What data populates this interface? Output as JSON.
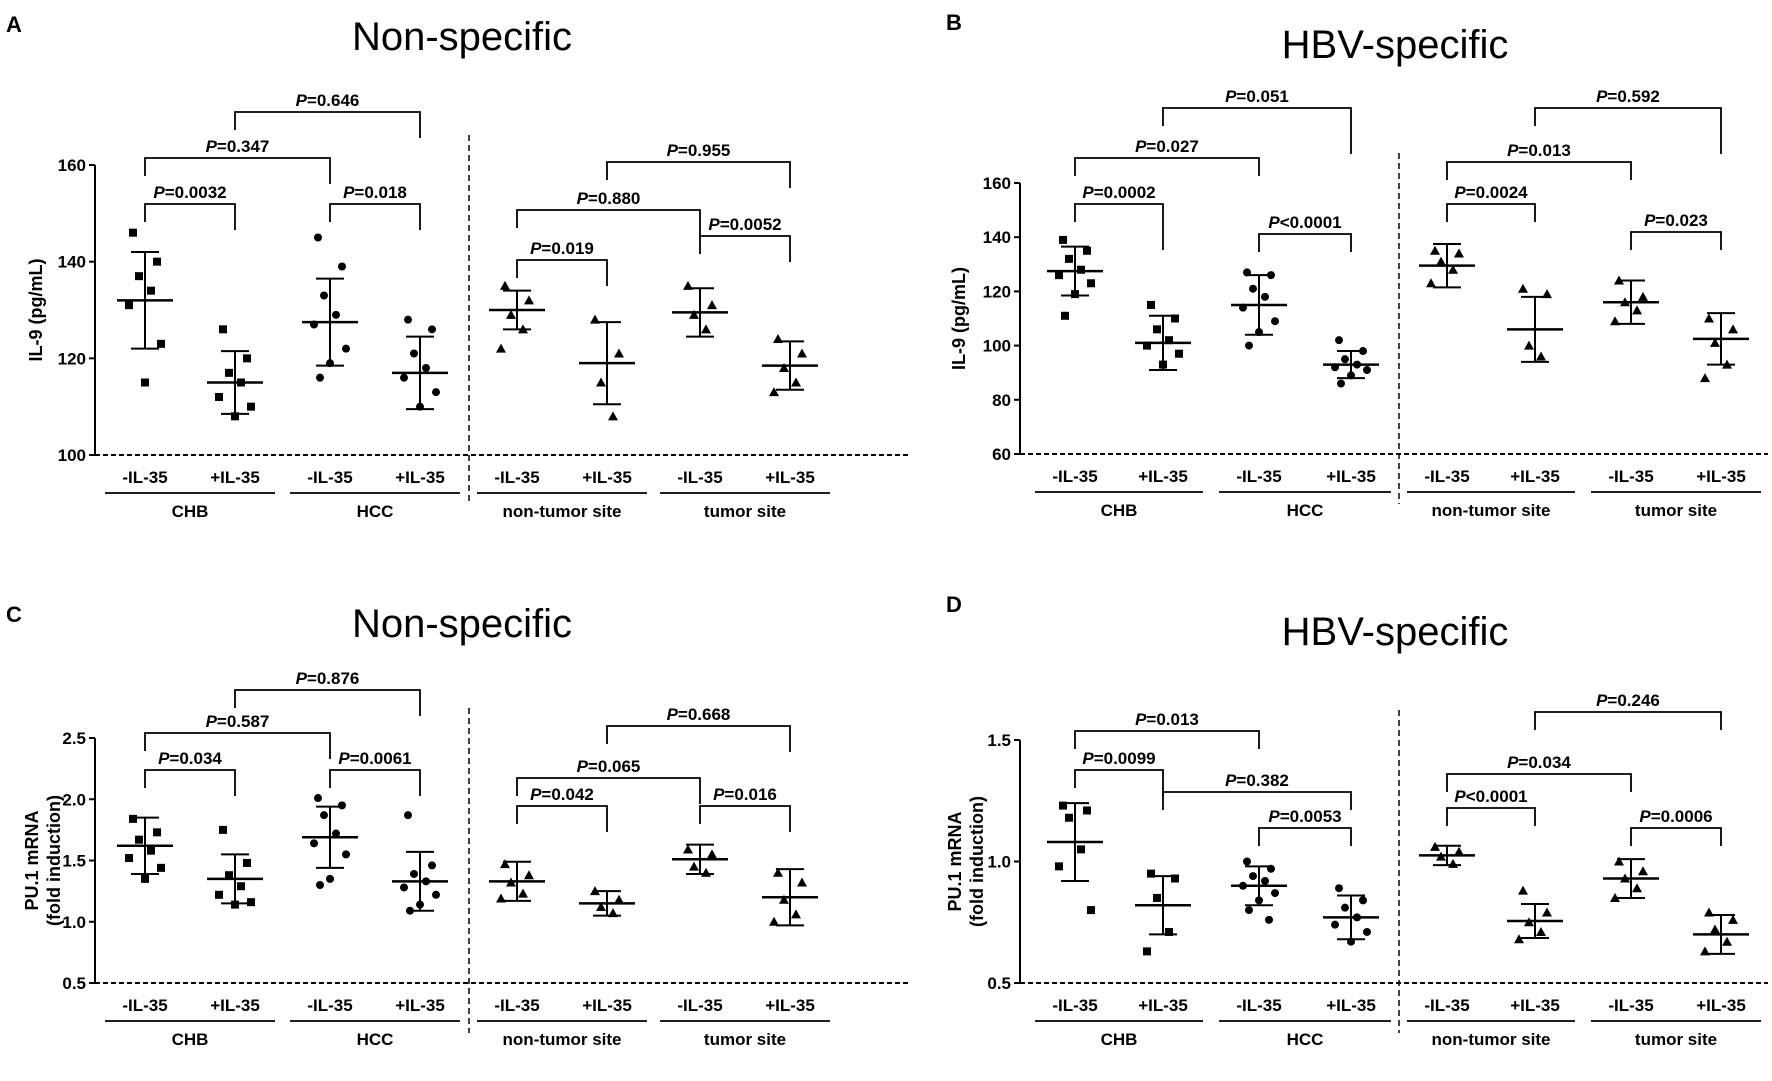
{
  "chart_data": [
    {
      "letter": "A",
      "type": "scatter",
      "title": "Non-specific",
      "ylabel": [
        "IL-9 (pg/mL)"
      ],
      "ylim": [
        100,
        160
      ],
      "yticks": [
        "100",
        "120",
        "140",
        "160"
      ],
      "categories": [
        "-IL-35",
        "+IL-35",
        "-IL-35",
        "+IL-35",
        "-IL-35",
        "+IL-35",
        "-IL-35",
        "+IL-35"
      ],
      "groups": [
        "CHB",
        "HCC",
        "non-tumor site",
        "tumor site"
      ],
      "marker_shapes": [
        "square",
        "square",
        "circle",
        "circle",
        "triangle",
        "triangle",
        "triangle",
        "triangle"
      ],
      "means": [
        132,
        115,
        127.5,
        117,
        130,
        119,
        129.5,
        118.5
      ],
      "sd": [
        10,
        6.5,
        9,
        7.5,
        4,
        8.5,
        5,
        5
      ],
      "points": [
        [
          146,
          140,
          137,
          134,
          131,
          123,
          115
        ],
        [
          126,
          120,
          117,
          115,
          112,
          110,
          108
        ],
        [
          145,
          139,
          133,
          129,
          127,
          122,
          119,
          116
        ],
        [
          128,
          126,
          121,
          118,
          116,
          113,
          110
        ],
        [
          135,
          132,
          129,
          126,
          122
        ],
        [
          128,
          121,
          115,
          108
        ],
        [
          135,
          131,
          129,
          126
        ],
        [
          124,
          121,
          118,
          115,
          113
        ]
      ],
      "comparisons": [
        {
          "from": 0,
          "to": 1,
          "label": "P=0.0032"
        },
        {
          "from": 2,
          "to": 3,
          "label": "P=0.018"
        },
        {
          "from": 0,
          "to": 2,
          "label": "P=0.347"
        },
        {
          "from": 1,
          "to": 3,
          "label": "P=0.646"
        },
        {
          "from": 4,
          "to": 5,
          "label": "P=0.019"
        },
        {
          "from": 6,
          "to": 7,
          "label": "P=0.0052"
        },
        {
          "from": 4,
          "to": 6,
          "label": "P=0.880"
        },
        {
          "from": 5,
          "to": 7,
          "label": "P=0.955"
        }
      ]
    },
    {
      "letter": "B",
      "type": "scatter",
      "title": "HBV-specific",
      "ylabel": [
        "IL-9 (pg/mL)"
      ],
      "ylim": [
        60,
        160
      ],
      "yticks": [
        "60",
        "80",
        "100",
        "120",
        "140",
        "160"
      ],
      "categories": [
        "-IL-35",
        "+IL-35",
        "-IL-35",
        "+IL-35",
        "-IL-35",
        "+IL-35",
        "-IL-35",
        "+IL-35"
      ],
      "groups": [
        "CHB",
        "HCC",
        "non-tumor site",
        "tumor site"
      ],
      "marker_shapes": [
        "square",
        "square",
        "circle",
        "circle",
        "triangle",
        "triangle",
        "triangle",
        "triangle"
      ],
      "means": [
        127.5,
        101,
        115,
        93,
        129.5,
        106,
        116,
        102.5
      ],
      "sd": [
        9,
        10,
        11,
        5,
        8,
        12,
        8,
        9.5
      ],
      "points": [
        [
          139,
          135,
          132,
          128,
          126,
          123,
          119,
          111
        ],
        [
          115,
          110,
          106,
          102,
          100,
          97,
          93
        ],
        [
          127,
          126,
          121,
          118,
          114,
          109,
          105,
          100
        ],
        [
          102,
          98,
          95,
          93,
          92,
          91,
          89,
          86
        ],
        [
          135,
          134,
          131,
          128,
          123
        ],
        [
          121,
          119,
          100,
          96
        ],
        [
          124,
          118,
          116,
          113,
          109
        ],
        [
          110,
          106,
          101,
          93,
          88
        ]
      ],
      "comparisons": [
        {
          "from": 0,
          "to": 1,
          "label": "P=0.0002"
        },
        {
          "from": 2,
          "to": 3,
          "label": "P<0.0001"
        },
        {
          "from": 0,
          "to": 2,
          "label": "P=0.027"
        },
        {
          "from": 1,
          "to": 3,
          "label": "P=0.051"
        },
        {
          "from": 4,
          "to": 5,
          "label": "P=0.0024"
        },
        {
          "from": 6,
          "to": 7,
          "label": "P=0.023"
        },
        {
          "from": 4,
          "to": 6,
          "label": "P=0.013"
        },
        {
          "from": 5,
          "to": 7,
          "label": "P=0.592"
        }
      ]
    },
    {
      "letter": "C",
      "type": "scatter",
      "title": "Non-specific",
      "ylabel": [
        "PU.1 mRNA",
        "(fold induction)"
      ],
      "ylim": [
        0.5,
        2.5
      ],
      "yticks": [
        "0.5",
        "1.0",
        "1.5",
        "2.0",
        "2.5"
      ],
      "categories": [
        "-IL-35",
        "+IL-35",
        "-IL-35",
        "+IL-35",
        "-IL-35",
        "+IL-35",
        "-IL-35",
        "+IL-35"
      ],
      "groups": [
        "CHB",
        "HCC",
        "non-tumor site",
        "tumor site"
      ],
      "marker_shapes": [
        "square",
        "square",
        "circle",
        "circle",
        "triangle",
        "triangle",
        "triangle",
        "triangle"
      ],
      "means": [
        1.62,
        1.35,
        1.69,
        1.33,
        1.33,
        1.15,
        1.51,
        1.2
      ],
      "sd": [
        0.23,
        0.2,
        0.25,
        0.24,
        0.16,
        0.1,
        0.12,
        0.23
      ],
      "points": [
        [
          1.84,
          1.73,
          1.67,
          1.58,
          1.52,
          1.44,
          1.35
        ],
        [
          1.75,
          1.48,
          1.38,
          1.29,
          1.22,
          1.16,
          1.14
        ],
        [
          2.01,
          1.95,
          1.87,
          1.72,
          1.64,
          1.55,
          1.35,
          1.3
        ],
        [
          1.87,
          1.46,
          1.39,
          1.33,
          1.28,
          1.22,
          1.14,
          1.09
        ],
        [
          1.47,
          1.38,
          1.32,
          1.23,
          1.19
        ],
        [
          1.25,
          1.18,
          1.12,
          1.07
        ],
        [
          1.59,
          1.55,
          1.45,
          1.4
        ],
        [
          1.4,
          1.32,
          1.18,
          1.06,
          1.0
        ]
      ],
      "comparisons": [
        {
          "from": 0,
          "to": 1,
          "label": "P=0.034"
        },
        {
          "from": 2,
          "to": 3,
          "label": "P=0.0061"
        },
        {
          "from": 0,
          "to": 2,
          "label": "P=0.587"
        },
        {
          "from": 1,
          "to": 3,
          "label": "P=0.876"
        },
        {
          "from": 4,
          "to": 5,
          "label": "P=0.042"
        },
        {
          "from": 6,
          "to": 7,
          "label": "P=0.016"
        },
        {
          "from": 4,
          "to": 6,
          "label": "P=0.065"
        },
        {
          "from": 5,
          "to": 7,
          "label": "P=0.668"
        }
      ]
    },
    {
      "letter": "D",
      "type": "scatter",
      "title": "HBV-specific",
      "ylabel": [
        "PU.1 mRNA",
        "(fold induction)"
      ],
      "ylim": [
        0.5,
        1.5
      ],
      "yticks": [
        "0.5",
        "1.0",
        "1.5"
      ],
      "categories": [
        "-IL-35",
        "+IL-35",
        "-IL-35",
        "+IL-35",
        "-IL-35",
        "+IL-35",
        "-IL-35",
        "+IL-35"
      ],
      "groups": [
        "CHB",
        "HCC",
        "non-tumor site",
        "tumor site"
      ],
      "marker_shapes": [
        "square",
        "square",
        "circle",
        "circle",
        "triangle",
        "triangle",
        "triangle",
        "triangle"
      ],
      "means": [
        1.08,
        0.82,
        0.9,
        0.77,
        1.025,
        0.755,
        0.93,
        0.7
      ],
      "sd": [
        0.16,
        0.12,
        0.08,
        0.09,
        0.04,
        0.07,
        0.08,
        0.08
      ],
      "points": [
        [
          1.23,
          1.21,
          1.18,
          1.05,
          0.98,
          0.8
        ],
        [
          0.95,
          0.93,
          0.85,
          0.71,
          0.63
        ],
        [
          1.0,
          0.97,
          0.94,
          0.92,
          0.9,
          0.87,
          0.84,
          0.8,
          0.76
        ],
        [
          0.89,
          0.84,
          0.81,
          0.77,
          0.74,
          0.71,
          0.67
        ],
        [
          1.06,
          1.04,
          1.02,
          0.99
        ],
        [
          0.88,
          0.79,
          0.75,
          0.71,
          0.68
        ],
        [
          1.0,
          0.96,
          0.93,
          0.89,
          0.85
        ],
        [
          0.79,
          0.76,
          0.72,
          0.67,
          0.63
        ]
      ],
      "comparisons": [
        {
          "from": 0,
          "to": 1,
          "label": "P=0.0099"
        },
        {
          "from": 0,
          "to": 2,
          "label": "P=0.013"
        },
        {
          "from": 2,
          "to": 3,
          "label": "P=0.0053"
        },
        {
          "from": 1,
          "to": 3,
          "label": "P=0.382"
        },
        {
          "from": 4,
          "to": 5,
          "label": "P<0.0001"
        },
        {
          "from": 6,
          "to": 7,
          "label": "P=0.0006"
        },
        {
          "from": 4,
          "to": 6,
          "label": "P=0.034"
        },
        {
          "from": 5,
          "to": 7,
          "label": "P=0.246"
        }
      ]
    }
  ]
}
